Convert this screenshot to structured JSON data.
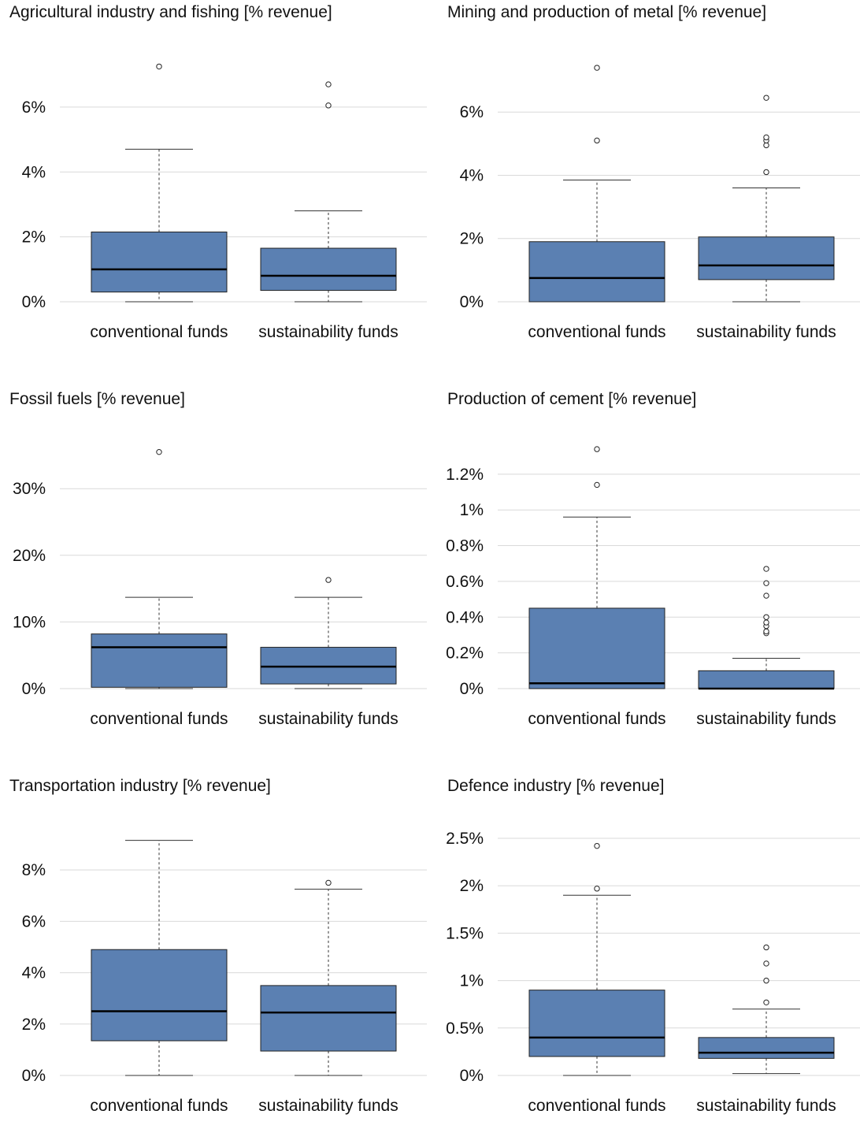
{
  "chart_data": [
    {
      "type": "box",
      "title": "Agricultural industry and fishing [% revenue]",
      "categories": [
        "conventional funds",
        "sustainability funds"
      ],
      "ylim": [
        0,
        7.6
      ],
      "yticks": [
        0,
        2,
        4,
        6
      ],
      "ytick_labels": [
        "0%",
        "2%",
        "4%",
        "6%"
      ],
      "grid": true,
      "boxes": [
        {
          "min": 0,
          "q1": 0.3,
          "median": 1.0,
          "q3": 2.15,
          "max": 4.7,
          "outliers": [
            7.25
          ]
        },
        {
          "min": 0,
          "q1": 0.35,
          "median": 0.8,
          "q3": 1.65,
          "max": 2.8,
          "outliers": [
            6.05,
            6.7
          ]
        }
      ]
    },
    {
      "type": "box",
      "title": "Mining and production of metal [% revenue]",
      "categories": [
        "conventional funds",
        "sustainability funds"
      ],
      "ylim": [
        0,
        7.8
      ],
      "yticks": [
        0,
        2,
        4,
        6
      ],
      "ytick_labels": [
        "0%",
        "2%",
        "4%",
        "6%"
      ],
      "grid": true,
      "boxes": [
        {
          "min": 0,
          "q1": 0,
          "median": 0.75,
          "q3": 1.9,
          "max": 3.85,
          "outliers": [
            5.1,
            7.4
          ]
        },
        {
          "min": 0,
          "q1": 0.7,
          "median": 1.15,
          "q3": 2.05,
          "max": 3.6,
          "outliers": [
            4.1,
            4.95,
            5.1,
            5.2,
            6.45
          ]
        }
      ]
    },
    {
      "type": "box",
      "title": "Fossil fuels [% revenue]",
      "categories": [
        "conventional funds",
        "sustainability funds"
      ],
      "ylim": [
        0,
        37
      ],
      "yticks": [
        0,
        10,
        20,
        30
      ],
      "ytick_labels": [
        "0%",
        "10%",
        "20%",
        "30%"
      ],
      "grid": true,
      "boxes": [
        {
          "min": 0,
          "q1": 0.2,
          "median": 6.2,
          "q3": 8.2,
          "max": 13.7,
          "outliers": [
            35.5
          ]
        },
        {
          "min": 0,
          "q1": 0.7,
          "median": 3.3,
          "q3": 6.2,
          "max": 13.7,
          "outliers": [
            16.3
          ]
        }
      ]
    },
    {
      "type": "box",
      "title": "Production of cement [% revenue]",
      "categories": [
        "conventional funds",
        "sustainability funds"
      ],
      "ylim": [
        0,
        1.38
      ],
      "yticks": [
        0,
        0.2,
        0.4,
        0.6,
        0.8,
        1.0,
        1.2
      ],
      "ytick_labels": [
        "0%",
        "0.2%",
        "0.4%",
        "0.6%",
        "0.8%",
        "1%",
        "1.2%"
      ],
      "grid": true,
      "boxes": [
        {
          "min": 0,
          "q1": 0,
          "median": 0.03,
          "q3": 0.45,
          "max": 0.96,
          "outliers": [
            1.14,
            1.34
          ]
        },
        {
          "min": 0,
          "q1": 0,
          "median": 0.0,
          "q3": 0.1,
          "max": 0.17,
          "outliers": [
            0.31,
            0.32,
            0.35,
            0.37,
            0.4,
            0.52,
            0.59,
            0.67
          ]
        }
      ]
    },
    {
      "type": "box",
      "title": "Transportation industry [% revenue]",
      "categories": [
        "conventional funds",
        "sustainability funds"
      ],
      "ylim": [
        0,
        9.6
      ],
      "yticks": [
        0,
        2,
        4,
        6,
        8
      ],
      "ytick_labels": [
        "0%",
        "2%",
        "4%",
        "6%",
        "8%"
      ],
      "grid": true,
      "boxes": [
        {
          "min": 0,
          "q1": 1.35,
          "median": 2.5,
          "q3": 4.9,
          "max": 9.15,
          "outliers": []
        },
        {
          "min": 0,
          "q1": 0.95,
          "median": 2.45,
          "q3": 3.5,
          "max": 7.25,
          "outliers": [
            7.5
          ]
        }
      ]
    },
    {
      "type": "box",
      "title": "Defence industry [% revenue]",
      "categories": [
        "conventional funds",
        "sustainability funds"
      ],
      "ylim": [
        0,
        2.6
      ],
      "yticks": [
        0,
        0.5,
        1.0,
        1.5,
        2.0,
        2.5
      ],
      "ytick_labels": [
        "0%",
        "0.5%",
        "1%",
        "1.5%",
        "2%",
        "2.5%"
      ],
      "grid": true,
      "boxes": [
        {
          "min": 0,
          "q1": 0.2,
          "median": 0.4,
          "q3": 0.9,
          "max": 1.9,
          "outliers": [
            1.97,
            2.42
          ]
        },
        {
          "min": 0.02,
          "q1": 0.18,
          "median": 0.24,
          "q3": 0.4,
          "max": 0.7,
          "outliers": [
            0.77,
            1.0,
            1.18,
            1.35
          ]
        }
      ]
    }
  ]
}
